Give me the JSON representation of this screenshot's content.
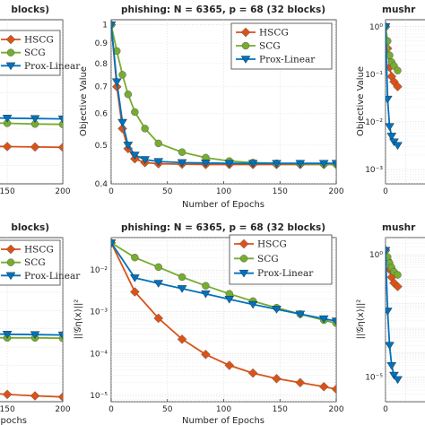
{
  "chart_data": [
    {
      "id": "left-top",
      "type": "line",
      "title": "blocks)",
      "xlabel": "",
      "ylabel": "",
      "xticklabels": [
        "150",
        "200"
      ],
      "yticklabels": [],
      "xlim": [
        95,
        200
      ],
      "ylim": [
        0.3,
        0.75
      ],
      "yscale": "linear",
      "grid": true,
      "legend": [
        "HSCG",
        "SCG",
        "Prox-Linear"
      ],
      "legend_position": "top-left",
      "series": [
        {
          "name": "HSCG",
          "color": "#D95319",
          "marker": "diamond",
          "x": [
            100,
            125,
            150,
            175,
            200
          ],
          "y": [
            0.41,
            0.404,
            0.402,
            0.401,
            0.4
          ]
        },
        {
          "name": "SCG",
          "color": "#77AC30",
          "marker": "circle",
          "x": [
            100,
            125,
            150,
            175,
            200
          ],
          "y": [
            0.472,
            0.468,
            0.466,
            0.464,
            0.463
          ]
        },
        {
          "name": "Prox-Linear",
          "color": "#0072BD",
          "marker": "triangle-down",
          "x": [
            100,
            125,
            150,
            175,
            200
          ],
          "y": [
            0.485,
            0.482,
            0.48,
            0.479,
            0.478
          ]
        }
      ]
    },
    {
      "id": "phishing-objective",
      "type": "line",
      "title": "phishing: N = 6365, p = 68 (32 blocks)",
      "xlabel": "Number of Epochs",
      "ylabel": "Objective Value",
      "xticklabels": [
        "0",
        "50",
        "100",
        "150",
        "200"
      ],
      "yticklabels": [
        "0.4",
        "0.5",
        "0.6",
        "0.7",
        "0.8",
        "0.9",
        "1"
      ],
      "xticks": [
        0,
        50,
        100,
        150,
        200
      ],
      "yticks": [
        0.4,
        0.5,
        0.6,
        0.7,
        0.8,
        0.9,
        1.0
      ],
      "xlim": [
        0,
        200
      ],
      "ylim": [
        0.4,
        1.03
      ],
      "yscale": "log",
      "grid": true,
      "legend": [
        "HSCG",
        "SCG",
        "Prox-Linear"
      ],
      "legend_position": "top-right",
      "series": [
        {
          "name": "HSCG",
          "color": "#D95319",
          "marker": "diamond",
          "x": [
            0,
            5,
            10,
            15,
            21,
            30,
            42,
            63,
            84,
            105,
            126,
            147,
            168,
            189,
            200
          ],
          "y": [
            1.0,
            0.7,
            0.55,
            0.49,
            0.462,
            0.452,
            0.449,
            0.448,
            0.447,
            0.447,
            0.447,
            0.447,
            0.447,
            0.447,
            0.447
          ]
        },
        {
          "name": "SCG",
          "color": "#77AC30",
          "marker": "circle",
          "x": [
            0,
            5,
            10,
            15,
            21,
            30,
            42,
            63,
            84,
            105,
            126,
            147,
            168,
            189,
            200
          ],
          "y": [
            1.0,
            0.86,
            0.75,
            0.67,
            0.605,
            0.55,
            0.505,
            0.48,
            0.465,
            0.456,
            0.452,
            0.45,
            0.449,
            0.448,
            0.448
          ]
        },
        {
          "name": "Prox-Linear",
          "color": "#0072BD",
          "marker": "triangle-down",
          "x": [
            0,
            5,
            10,
            15,
            21,
            30,
            42,
            63,
            84,
            105,
            126,
            147,
            168,
            189,
            200
          ],
          "y": [
            1.0,
            0.72,
            0.57,
            0.5,
            0.472,
            0.46,
            0.455,
            0.452,
            0.451,
            0.45,
            0.45,
            0.45,
            0.45,
            0.45,
            0.45
          ]
        }
      ]
    },
    {
      "id": "mushrooms-objective",
      "type": "line",
      "title": "mushr",
      "xlabel": "",
      "ylabel": "Objective Value",
      "xticklabels": [
        "0"
      ],
      "yticklabels": [
        "10⁻³",
        "10⁻²",
        "10⁻¹",
        "10⁰"
      ],
      "xlim": [
        0,
        200
      ],
      "ylim": [
        0.0005,
        1.4
      ],
      "yscale": "log",
      "grid": true,
      "legend": [],
      "legend_position": "",
      "series": [
        {
          "name": "HSCG",
          "color": "#D95319",
          "marker": "diamond",
          "x": [
            0,
            5,
            10,
            15,
            21,
            30
          ],
          "y": [
            1.0,
            0.35,
            0.14,
            0.09,
            0.07,
            0.055
          ]
        },
        {
          "name": "SCG",
          "color": "#77AC30",
          "marker": "circle",
          "x": [
            0,
            5,
            10,
            15,
            21,
            30
          ],
          "y": [
            1.0,
            0.5,
            0.25,
            0.18,
            0.15,
            0.12
          ]
        },
        {
          "name": "Prox-Linear",
          "color": "#0072BD",
          "marker": "triangle-down",
          "x": [
            0,
            5,
            10,
            15,
            21,
            30
          ],
          "y": [
            1.0,
            0.03,
            0.008,
            0.005,
            0.0038,
            0.0032
          ]
        }
      ]
    },
    {
      "id": "left-bottom",
      "type": "line",
      "title": "blocks)",
      "xlabel": "Epochs",
      "ylabel": "",
      "xticklabels": [
        "150",
        "200"
      ],
      "yticklabels": [],
      "xlim": [
        95,
        200
      ],
      "ylim": [
        0.3,
        0.75
      ],
      "yscale": "linear",
      "grid": true,
      "legend": [
        "HSCG",
        "SCG",
        "Prox-Linear"
      ],
      "legend_position": "top-left",
      "series": [
        {
          "name": "HSCG",
          "color": "#D95319",
          "marker": "diamond",
          "x": [
            100,
            125,
            150,
            175,
            200
          ],
          "y": [
            0.33,
            0.325,
            0.32,
            0.316,
            0.313
          ]
        },
        {
          "name": "SCG",
          "color": "#77AC30",
          "marker": "circle",
          "x": [
            100,
            125,
            150,
            175,
            200
          ],
          "y": [
            0.478,
            0.476,
            0.475,
            0.475,
            0.474
          ]
        },
        {
          "name": "Prox-Linear",
          "color": "#0072BD",
          "marker": "triangle-down",
          "x": [
            100,
            125,
            150,
            175,
            200
          ],
          "y": [
            0.49,
            0.487,
            0.485,
            0.484,
            0.483
          ]
        }
      ]
    },
    {
      "id": "phishing-gradient",
      "type": "line",
      "title": "phishing: N = 6365, p = 68 (32 blocks)",
      "xlabel": "Number of Epochs",
      "ylabel": "||𝒢η(x)||²",
      "xticklabels": [
        "0",
        "50",
        "100",
        "150",
        "200"
      ],
      "yticklabels": [
        "10⁻⁵",
        "10⁻⁴",
        "10⁻³",
        "10⁻²"
      ],
      "xticks": [
        0,
        50,
        100,
        150,
        200
      ],
      "yticks": [
        1e-05,
        0.0001,
        0.001,
        0.01
      ],
      "xlim": [
        0,
        200
      ],
      "ylim": [
        7e-06,
        0.06
      ],
      "yscale": "log",
      "grid": true,
      "legend": [
        "HSCG",
        "SCG",
        "Prox-Linear"
      ],
      "legend_position": "top-right",
      "series": [
        {
          "name": "HSCG",
          "color": "#D95319",
          "marker": "diamond",
          "x": [
            0,
            21,
            42,
            63,
            84,
            105,
            126,
            147,
            168,
            189,
            200
          ],
          "y": [
            0.045,
            0.003,
            0.0007,
            0.00022,
            9.5e-05,
            5.2e-05,
            3.4e-05,
            2.5e-05,
            2e-05,
            1.6e-05,
            1.4e-05
          ]
        },
        {
          "name": "SCG",
          "color": "#77AC30",
          "marker": "circle",
          "x": [
            0,
            21,
            42,
            63,
            84,
            105,
            126,
            147,
            168,
            189,
            200
          ],
          "y": [
            0.045,
            0.02,
            0.0118,
            0.0068,
            0.0042,
            0.0027,
            0.0018,
            0.00125,
            0.00088,
            0.00063,
            0.00053
          ]
        },
        {
          "name": "Prox-Linear",
          "color": "#0072BD",
          "marker": "triangle-down",
          "x": [
            0,
            21,
            42,
            63,
            84,
            105,
            126,
            147,
            168,
            189,
            200
          ],
          "y": [
            0.045,
            0.0065,
            0.0048,
            0.0036,
            0.0027,
            0.002,
            0.0015,
            0.00115,
            0.00088,
            0.00068,
            0.0006
          ]
        }
      ]
    },
    {
      "id": "mushrooms-gradient",
      "type": "line",
      "title": "mushr",
      "xlabel": "",
      "ylabel": "||𝒢η(x)||²",
      "xticklabels": [
        "0"
      ],
      "yticklabels": [
        "10⁻⁵",
        "10⁰"
      ],
      "xlim": [
        0,
        200
      ],
      "ylim": [
        1e-06,
        5
      ],
      "yscale": "log",
      "grid": true,
      "legend": [],
      "legend_position": "",
      "series": [
        {
          "name": "HSCG",
          "color": "#D95319",
          "marker": "diamond",
          "x": [
            0,
            5,
            10,
            15,
            21,
            30
          ],
          "y": [
            1.5,
            0.6,
            0.25,
            0.12,
            0.07,
            0.05
          ]
        },
        {
          "name": "SCG",
          "color": "#77AC30",
          "marker": "circle",
          "x": [
            0,
            5,
            10,
            15,
            21,
            30
          ],
          "y": [
            1.5,
            0.8,
            0.45,
            0.3,
            0.2,
            0.15
          ]
        },
        {
          "name": "Prox-Linear",
          "color": "#0072BD",
          "marker": "triangle-down",
          "x": [
            0,
            5,
            10,
            15,
            21,
            30
          ],
          "y": [
            1.5,
            0.005,
            0.0002,
            3e-05,
            1.2e-05,
            8e-06
          ]
        }
      ]
    }
  ]
}
